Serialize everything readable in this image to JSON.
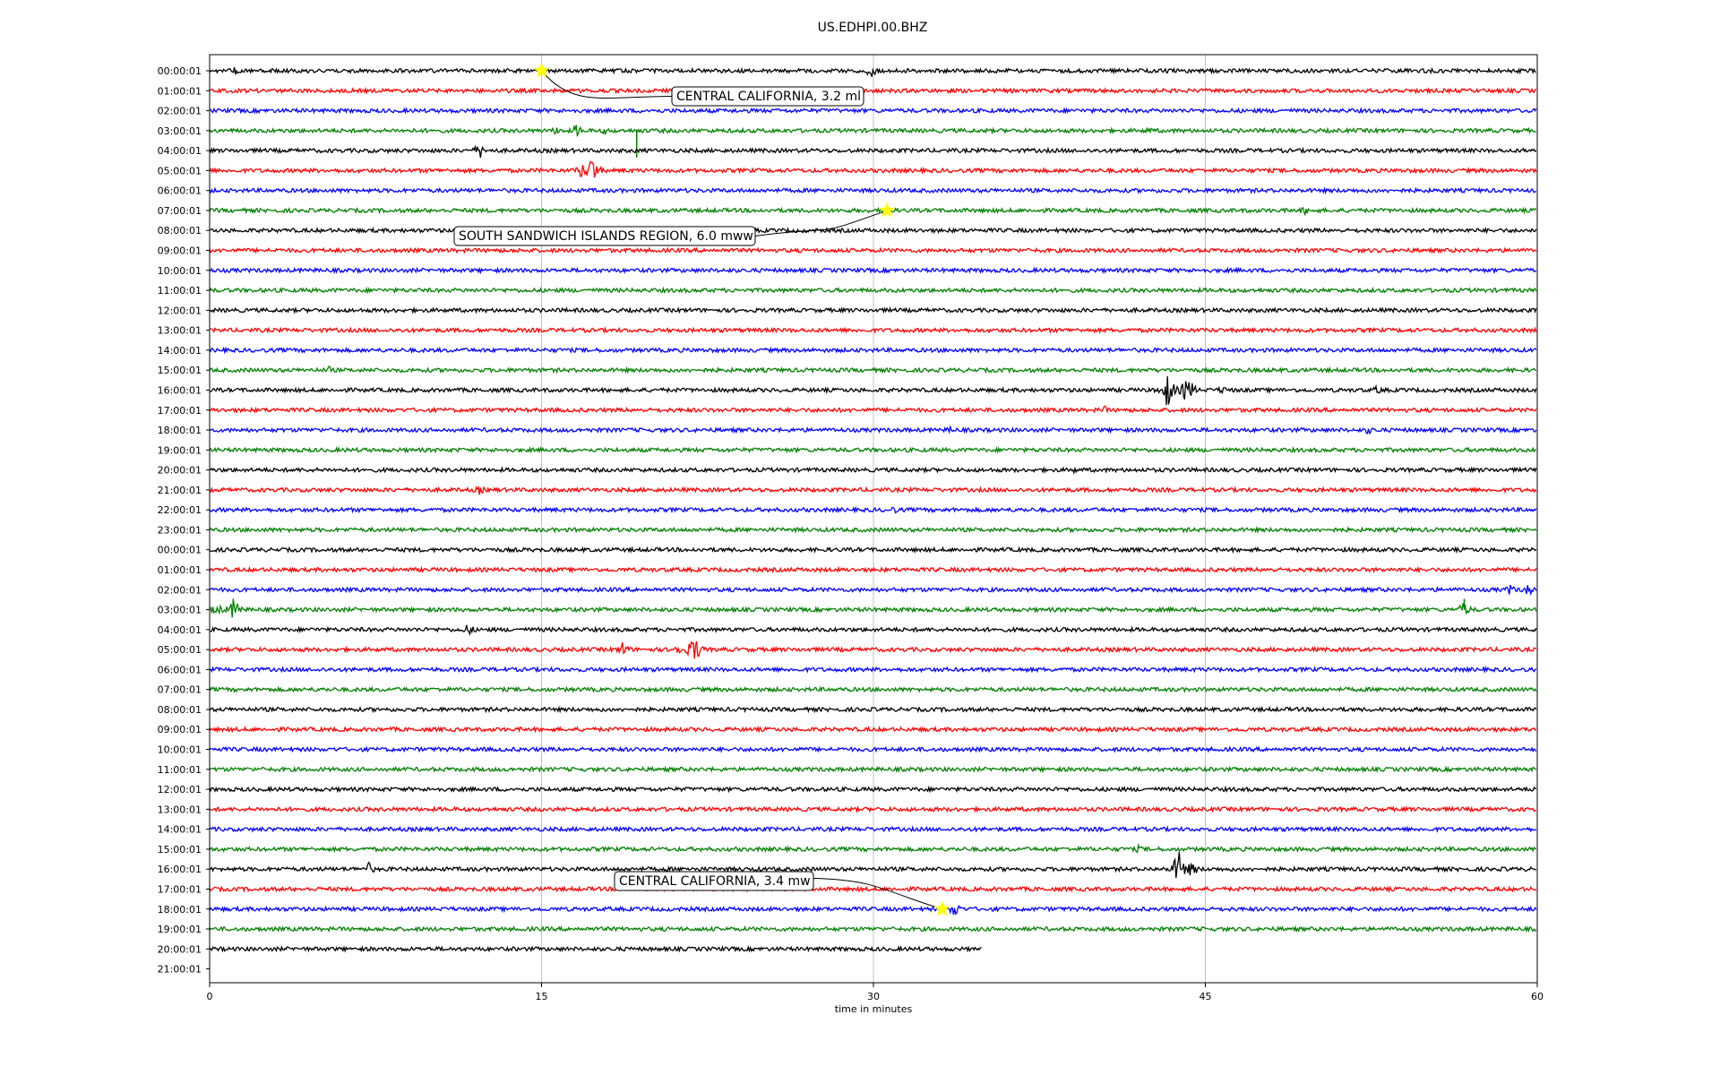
{
  "chart_data": {
    "type": "line",
    "title": "US.EDHPI.00.BHZ",
    "xlabel": "time in minutes",
    "ylabel": "",
    "xlim": [
      0,
      60
    ],
    "x_ticks": [
      0,
      15,
      30,
      45,
      60
    ],
    "grid": "vertical",
    "row_labels": [
      "00:00:01",
      "01:00:01",
      "02:00:01",
      "03:00:01",
      "04:00:01",
      "05:00:01",
      "06:00:01",
      "07:00:01",
      "08:00:01",
      "09:00:01",
      "10:00:01",
      "11:00:01",
      "12:00:01",
      "13:00:01",
      "14:00:01",
      "15:00:01",
      "16:00:01",
      "17:00:01",
      "18:00:01",
      "19:00:01",
      "20:00:01",
      "21:00:01",
      "22:00:01",
      "23:00:01",
      "00:00:01",
      "01:00:01",
      "02:00:01",
      "03:00:01",
      "04:00:01",
      "05:00:01",
      "06:00:01",
      "07:00:01",
      "08:00:01",
      "09:00:01",
      "10:00:01",
      "11:00:01",
      "12:00:01",
      "13:00:01",
      "14:00:01",
      "15:00:01",
      "16:00:01",
      "17:00:01",
      "18:00:01",
      "19:00:01",
      "20:00:01",
      "21:00:01"
    ],
    "trace_colors": [
      "#000000",
      "#ff0000",
      "#0000ff",
      "#008000"
    ],
    "marker_color": "#ffff00",
    "last_trace_end_minutes": 34.9,
    "events": [
      {
        "label": "CENTRAL CALIFORNIA, 3.2 ml",
        "row": 0,
        "minute": 15.0
      },
      {
        "label": "SOUTH SANDWICH ISLANDS REGION, 6.0 mww",
        "row": 7,
        "minute": 30.6
      },
      {
        "label": "CENTRAL CALIFORNIA, 3.4 mw",
        "row": 42,
        "minute": 33.1
      }
    ]
  }
}
